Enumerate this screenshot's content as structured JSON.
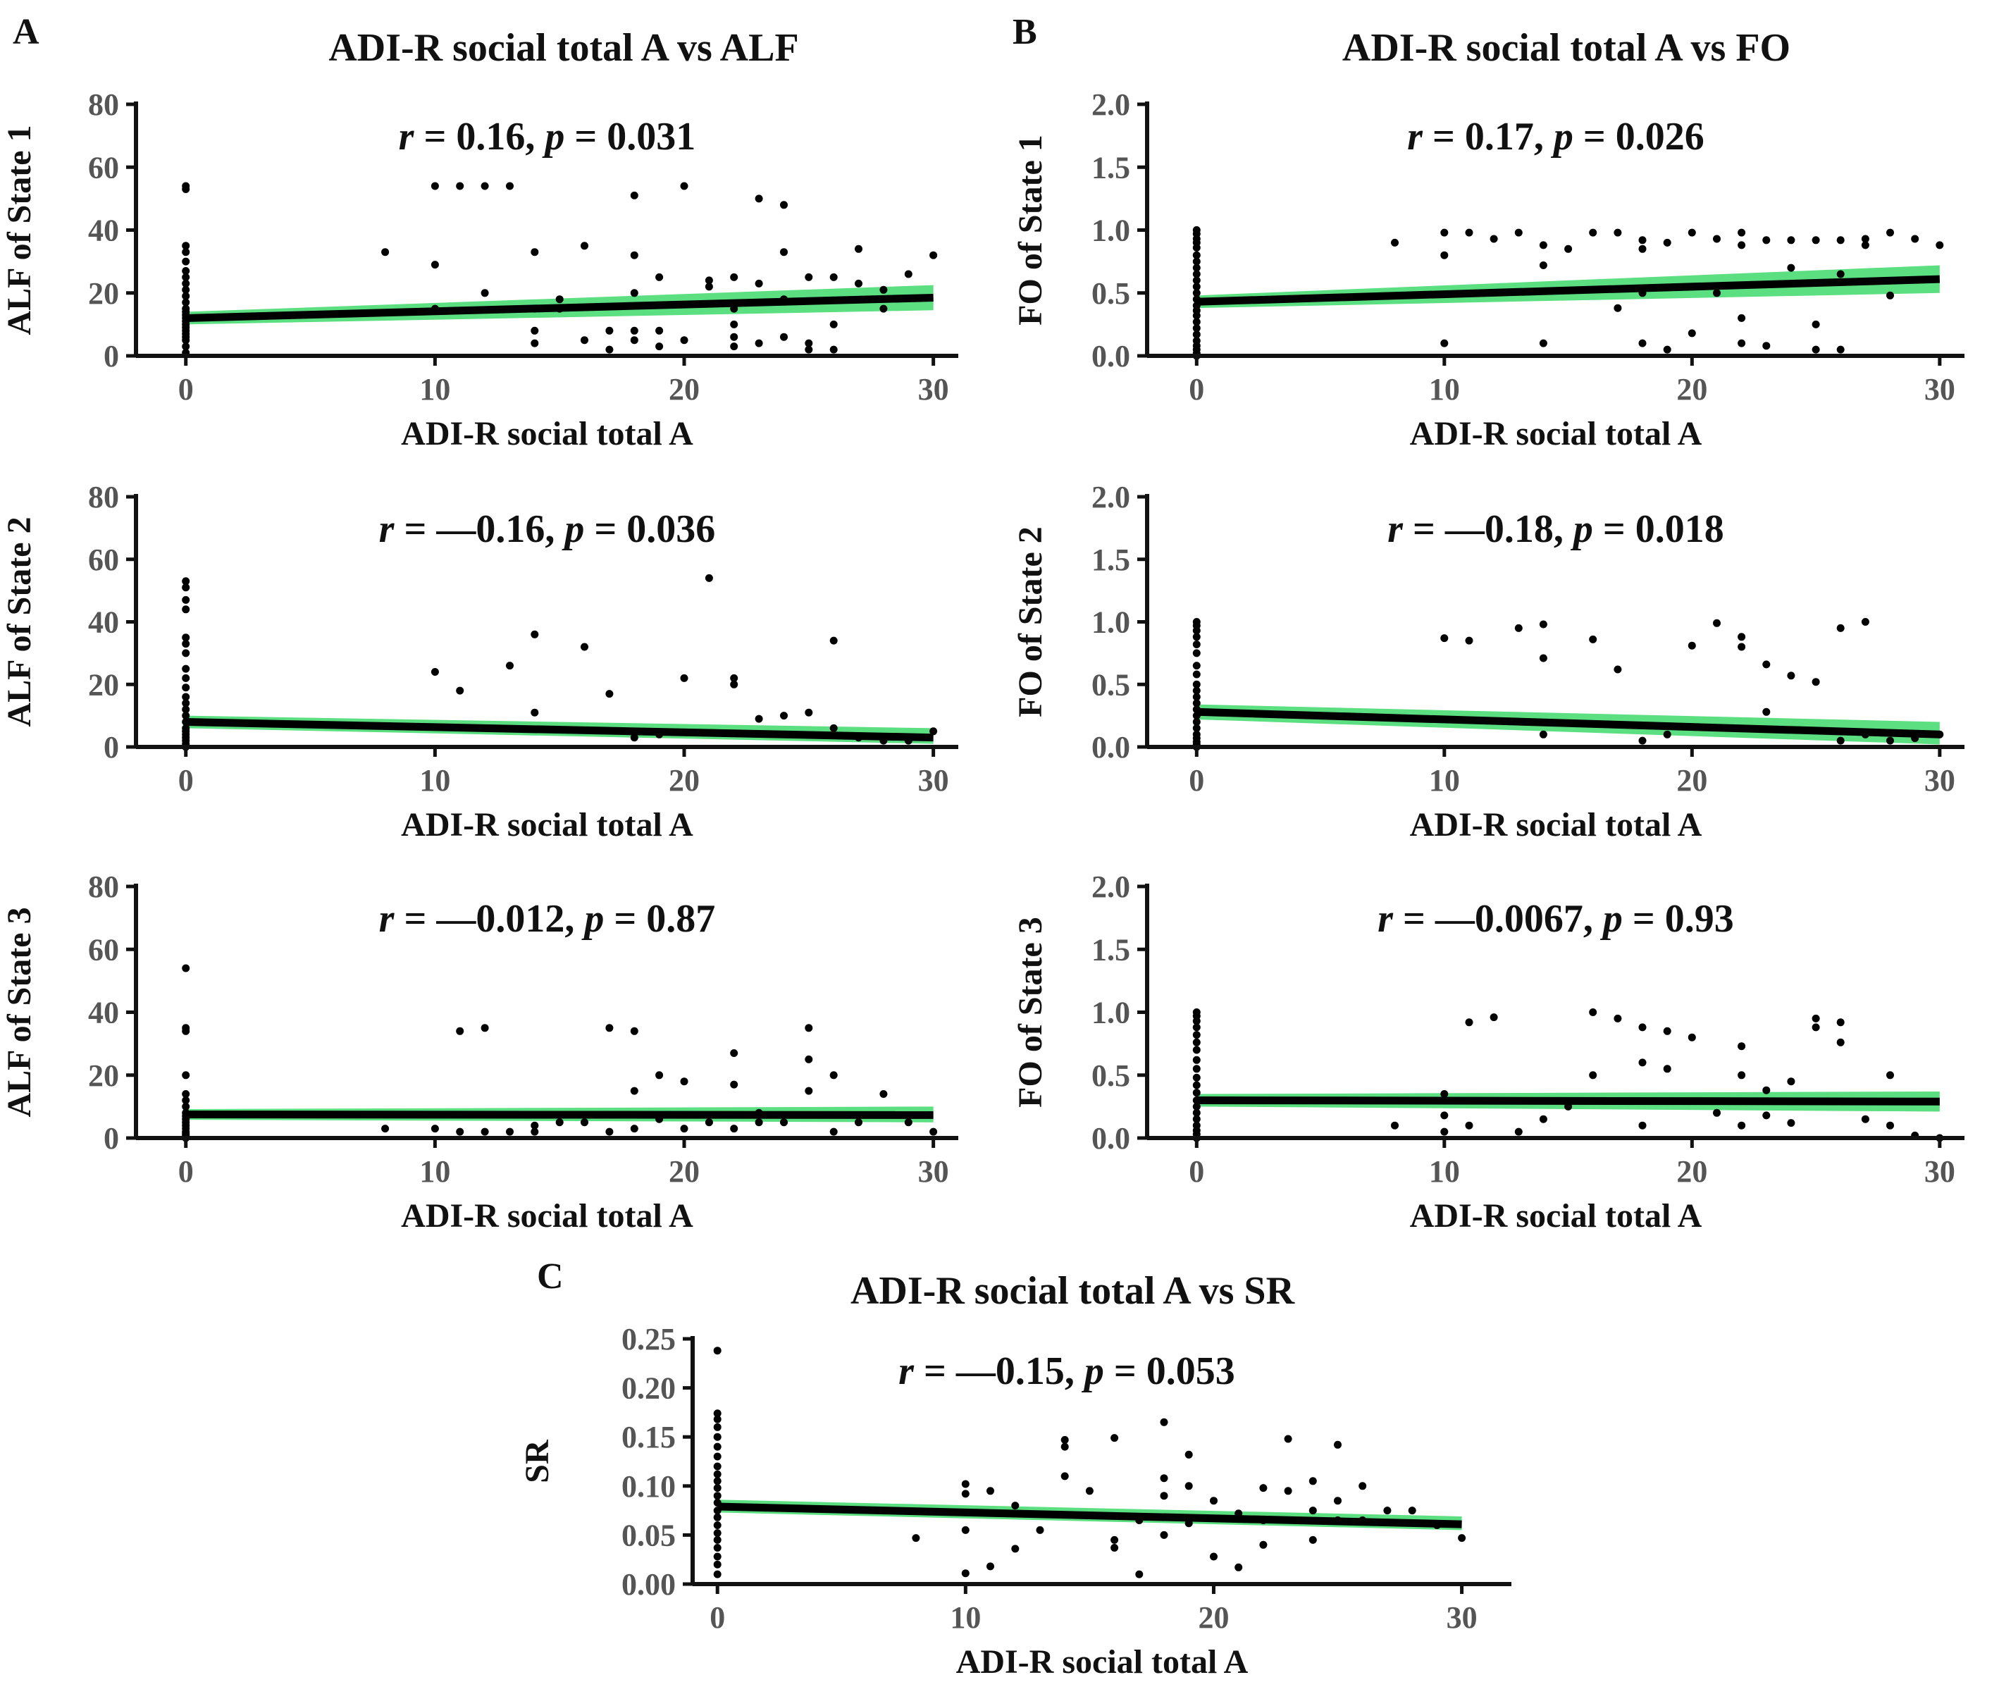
{
  "figure": {
    "sections": [
      {
        "label": "A",
        "title": "ADI-R social total A vs ALF"
      },
      {
        "label": "B",
        "title": "ADI-R social total A vs FO"
      },
      {
        "label": "C",
        "title": "ADI-R social total A vs SR"
      }
    ]
  },
  "chart_data": [
    {
      "id": "A1",
      "type": "scatter",
      "xlabel": "ADI-R social total A",
      "ylabel": "ALF of State 1",
      "annotation": {
        "r": "0.16",
        "p": "0.031"
      },
      "xlim": [
        -2,
        31
      ],
      "ylim": [
        0,
        80
      ],
      "xticks": [
        0,
        10,
        20,
        30
      ],
      "xtick_labels": [
        "0",
        "10",
        "20",
        "30"
      ],
      "yticks": [
        0,
        20,
        40,
        60,
        80
      ],
      "ytick_labels": [
        "0",
        "20",
        "40",
        "60",
        "80"
      ],
      "fit": {
        "x": [
          0,
          30
        ],
        "y": [
          12,
          18.5
        ],
        "band_lo": [
          10,
          14.5
        ],
        "band_hi": [
          14,
          22.5
        ]
      },
      "x": [
        0,
        0,
        0,
        0,
        0,
        0,
        0,
        0,
        0,
        0,
        0,
        0,
        0,
        0,
        0,
        0,
        0,
        0,
        0,
        0,
        0,
        0,
        0,
        0,
        8,
        10,
        10,
        10,
        11,
        12,
        12,
        13,
        14,
        14,
        14,
        14,
        15,
        15,
        16,
        16,
        17,
        17,
        18,
        18,
        18,
        18,
        18,
        19,
        19,
        19,
        20,
        20,
        21,
        21,
        22,
        22,
        22,
        22,
        22,
        23,
        23,
        23,
        24,
        24,
        24,
        24,
        25,
        25,
        25,
        26,
        26,
        26,
        27,
        27,
        28,
        28,
        29,
        30
      ],
      "y": [
        54,
        53,
        35,
        33,
        30,
        27,
        25,
        23,
        21,
        19,
        17,
        15,
        14,
        13,
        12,
        11,
        10,
        9,
        8,
        7,
        6,
        5,
        3,
        1,
        33,
        54,
        29,
        15,
        54,
        54,
        20,
        54,
        33,
        15,
        8,
        4,
        18,
        15,
        35,
        5,
        8,
        2,
        51,
        32,
        20,
        8,
        5,
        25,
        3,
        8,
        54,
        5,
        22,
        24,
        25,
        15,
        10,
        6,
        3,
        50,
        23,
        4,
        48,
        33,
        18,
        6,
        25,
        4,
        2,
        25,
        10,
        2,
        34,
        23,
        21,
        15,
        26,
        32
      ]
    },
    {
      "id": "B1",
      "type": "scatter",
      "xlabel": "ADI-R social total A",
      "ylabel": "FO of State 1",
      "annotation": {
        "r": "0.17",
        "p": "0.026"
      },
      "xlim": [
        -2,
        31
      ],
      "ylim": [
        0,
        2.0
      ],
      "xticks": [
        0,
        10,
        20,
        30
      ],
      "xtick_labels": [
        "0",
        "10",
        "20",
        "30"
      ],
      "yticks": [
        0,
        0.5,
        1.0,
        1.5,
        2.0
      ],
      "ytick_labels": [
        "0.0",
        "0.5",
        "1.0",
        "1.5",
        "2.0"
      ],
      "fit": {
        "x": [
          0,
          30
        ],
        "y": [
          0.43,
          0.61
        ],
        "band_lo": [
          0.38,
          0.5
        ],
        "band_hi": [
          0.48,
          0.72
        ]
      },
      "x": [
        0,
        0,
        0,
        0,
        0,
        0,
        0,
        0,
        0,
        0,
        0,
        0,
        0,
        0,
        0,
        0,
        0,
        0,
        0,
        0,
        0,
        0,
        0,
        0,
        8,
        10,
        10,
        10,
        11,
        12,
        13,
        14,
        14,
        14,
        15,
        16,
        17,
        17,
        18,
        18,
        18,
        18,
        19,
        19,
        20,
        20,
        21,
        21,
        22,
        22,
        22,
        22,
        23,
        23,
        24,
        24,
        25,
        25,
        25,
        26,
        26,
        26,
        27,
        27,
        28,
        28,
        29,
        30
      ],
      "y": [
        1.0,
        0.97,
        0.93,
        0.9,
        0.86,
        0.8,
        0.75,
        0.7,
        0.65,
        0.6,
        0.55,
        0.5,
        0.45,
        0.4,
        0.36,
        0.32,
        0.27,
        0.22,
        0.17,
        0.12,
        0.08,
        0.05,
        0.02,
        0.0,
        0.9,
        0.98,
        0.8,
        0.1,
        0.98,
        0.93,
        0.98,
        0.88,
        0.72,
        0.1,
        0.85,
        0.98,
        0.98,
        0.38,
        0.92,
        0.85,
        0.5,
        0.1,
        0.9,
        0.05,
        0.98,
        0.18,
        0.93,
        0.5,
        0.98,
        0.88,
        0.3,
        0.1,
        0.92,
        0.08,
        0.92,
        0.7,
        0.92,
        0.25,
        0.05,
        0.92,
        0.65,
        0.05,
        0.93,
        0.88,
        0.98,
        0.48,
        0.93,
        0.88
      ]
    },
    {
      "id": "A2",
      "type": "scatter",
      "xlabel": "ADI-R social total A",
      "ylabel": "ALF of State 2",
      "annotation": {
        "r": "—0.16",
        "p": "0.036"
      },
      "xlim": [
        -2,
        31
      ],
      "ylim": [
        0,
        80
      ],
      "xticks": [
        0,
        10,
        20,
        30
      ],
      "xtick_labels": [
        "0",
        "10",
        "20",
        "30"
      ],
      "yticks": [
        0,
        20,
        40,
        60,
        80
      ],
      "ytick_labels": [
        "0",
        "20",
        "40",
        "60",
        "80"
      ],
      "fit": {
        "x": [
          0,
          30
        ],
        "y": [
          8,
          3
        ],
        "band_lo": [
          6,
          1
        ],
        "band_hi": [
          10,
          6
        ]
      },
      "x": [
        0,
        0,
        0,
        0,
        0,
        0,
        0,
        0,
        0,
        0,
        0,
        0,
        0,
        0,
        0,
        0,
        0,
        0,
        0,
        0,
        0,
        0,
        10,
        11,
        13,
        14,
        14,
        16,
        17,
        18,
        19,
        20,
        21,
        22,
        22,
        23,
        24,
        25,
        26,
        26,
        27,
        28,
        29,
        30
      ],
      "y": [
        53,
        51,
        47,
        44,
        35,
        33,
        30,
        25,
        22,
        19,
        16,
        14,
        12,
        10,
        8,
        6,
        5,
        4,
        3,
        2,
        1,
        0,
        24,
        18,
        26,
        36,
        11,
        32,
        17,
        3,
        4,
        22,
        54,
        22,
        20,
        9,
        10,
        11,
        34,
        6,
        3,
        2,
        2,
        5
      ]
    },
    {
      "id": "B2",
      "type": "scatter",
      "xlabel": "ADI-R social total A",
      "ylabel": "FO of State 2",
      "annotation": {
        "r": "—0.18",
        "p": "0.018"
      },
      "xlim": [
        -2,
        31
      ],
      "ylim": [
        0,
        2.0
      ],
      "xticks": [
        0,
        10,
        20,
        30
      ],
      "xtick_labels": [
        "0",
        "10",
        "20",
        "30"
      ],
      "yticks": [
        0,
        0.5,
        1.0,
        1.5,
        2.0
      ],
      "ytick_labels": [
        "0.0",
        "0.5",
        "1.0",
        "1.5",
        "2.0"
      ],
      "fit": {
        "x": [
          0,
          30
        ],
        "y": [
          0.28,
          0.1
        ],
        "band_lo": [
          0.22,
          0.02
        ],
        "band_hi": [
          0.34,
          0.2
        ]
      },
      "x": [
        0,
        0,
        0,
        0,
        0,
        0,
        0,
        0,
        0,
        0,
        0,
        0,
        0,
        0,
        0,
        0,
        0,
        0,
        0,
        0,
        0,
        10,
        11,
        13,
        14,
        14,
        14,
        16,
        17,
        18,
        19,
        20,
        21,
        22,
        22,
        23,
        23,
        24,
        25,
        26,
        26,
        27,
        27,
        28,
        29,
        30
      ],
      "y": [
        1.0,
        0.97,
        0.93,
        0.88,
        0.82,
        0.75,
        0.65,
        0.58,
        0.5,
        0.45,
        0.4,
        0.35,
        0.3,
        0.25,
        0.2,
        0.15,
        0.1,
        0.07,
        0.04,
        0.02,
        0.0,
        0.87,
        0.85,
        0.95,
        0.98,
        0.71,
        0.1,
        0.86,
        0.62,
        0.05,
        0.1,
        0.81,
        0.99,
        0.88,
        0.8,
        0.66,
        0.28,
        0.57,
        0.52,
        0.95,
        0.05,
        1.0,
        0.1,
        0.05,
        0.07,
        0.1
      ]
    },
    {
      "id": "A3",
      "type": "scatter",
      "xlabel": "ADI-R social total A",
      "ylabel": "ALF of State 3",
      "annotation": {
        "r": "—0.012",
        "p": "0.87"
      },
      "xlim": [
        -2,
        31
      ],
      "ylim": [
        0,
        80
      ],
      "xticks": [
        0,
        10,
        20,
        30
      ],
      "xtick_labels": [
        "0",
        "10",
        "20",
        "30"
      ],
      "yticks": [
        0,
        20,
        40,
        60,
        80
      ],
      "ytick_labels": [
        "0",
        "20",
        "40",
        "60",
        "80"
      ],
      "fit": {
        "x": [
          0,
          30
        ],
        "y": [
          7.5,
          7.3
        ],
        "band_lo": [
          5.8,
          5
        ],
        "band_hi": [
          9.2,
          10
        ]
      },
      "x": [
        0,
        0,
        0,
        0,
        0,
        0,
        0,
        0,
        0,
        0,
        0,
        0,
        0,
        0,
        0,
        0,
        0,
        0,
        8,
        10,
        11,
        11,
        12,
        12,
        13,
        14,
        14,
        15,
        16,
        17,
        17,
        18,
        18,
        18,
        19,
        19,
        20,
        20,
        21,
        22,
        22,
        22,
        23,
        23,
        24,
        25,
        25,
        25,
        26,
        26,
        27,
        28,
        29,
        30
      ],
      "y": [
        54,
        35,
        34,
        20,
        14,
        12,
        10,
        8,
        7,
        6,
        5,
        4,
        3,
        2,
        1.5,
        1,
        0.5,
        0,
        3,
        3,
        34,
        2,
        35,
        2,
        2,
        4,
        2,
        5,
        5,
        35,
        2,
        34,
        15,
        3,
        20,
        6,
        18,
        3,
        5,
        27,
        17,
        3,
        8,
        5,
        5,
        35,
        25,
        15,
        20,
        2,
        5,
        14,
        5,
        2
      ]
    },
    {
      "id": "B3",
      "type": "scatter",
      "xlabel": "ADI-R social total A",
      "ylabel": "FO of State 3",
      "annotation": {
        "r": "—0.0067",
        "p": "0.93"
      },
      "xlim": [
        -2,
        31
      ],
      "ylim": [
        0,
        2.0
      ],
      "xticks": [
        0,
        10,
        20,
        30
      ],
      "xtick_labels": [
        "0",
        "10",
        "20",
        "30"
      ],
      "yticks": [
        0,
        0.5,
        1.0,
        1.5,
        2.0
      ],
      "ytick_labels": [
        "0.0",
        "0.5",
        "1.0",
        "1.5",
        "2.0"
      ],
      "fit": {
        "x": [
          0,
          30
        ],
        "y": [
          0.3,
          0.29
        ],
        "band_lo": [
          0.25,
          0.21
        ],
        "band_hi": [
          0.35,
          0.37
        ]
      },
      "x": [
        0,
        0,
        0,
        0,
        0,
        0,
        0,
        0,
        0,
        0,
        0,
        0,
        0,
        0,
        0,
        0,
        0,
        0,
        0,
        0,
        8,
        10,
        10,
        10,
        11,
        11,
        12,
        13,
        14,
        15,
        16,
        16,
        17,
        18,
        18,
        18,
        19,
        19,
        20,
        21,
        22,
        22,
        22,
        23,
        23,
        24,
        24,
        25,
        25,
        26,
        26,
        27,
        28,
        28,
        29,
        30
      ],
      "y": [
        1.0,
        0.97,
        0.93,
        0.88,
        0.82,
        0.76,
        0.7,
        0.62,
        0.55,
        0.48,
        0.42,
        0.36,
        0.3,
        0.25,
        0.2,
        0.15,
        0.1,
        0.06,
        0.03,
        0.0,
        0.1,
        0.35,
        0.18,
        0.05,
        0.92,
        0.1,
        0.96,
        0.05,
        0.15,
        0.25,
        1.0,
        0.5,
        0.95,
        0.88,
        0.6,
        0.1,
        0.85,
        0.55,
        0.8,
        0.2,
        0.73,
        0.5,
        0.1,
        0.38,
        0.18,
        0.45,
        0.12,
        0.95,
        0.88,
        0.92,
        0.76,
        0.15,
        0.5,
        0.1,
        0.02,
        0.0
      ]
    },
    {
      "id": "C",
      "type": "scatter",
      "xlabel": "ADI-R social total A",
      "ylabel": "SR",
      "annotation": {
        "r": "—0.15",
        "p": "0.053"
      },
      "xlim": [
        -1,
        32
      ],
      "ylim": [
        0,
        0.25
      ],
      "xticks": [
        0,
        10,
        20,
        30
      ],
      "xtick_labels": [
        "0",
        "10",
        "20",
        "30"
      ],
      "yticks": [
        0,
        0.05,
        0.1,
        0.15,
        0.2,
        0.25
      ],
      "ytick_labels": [
        "0.00",
        "0.05",
        "0.10",
        "0.15",
        "0.20",
        "0.25"
      ],
      "fit": {
        "x": [
          0,
          30
        ],
        "y": [
          0.079,
          0.061
        ],
        "band_lo": [
          0.073,
          0.055
        ],
        "band_hi": [
          0.086,
          0.069
        ]
      },
      "x": [
        0,
        0,
        0,
        0,
        0,
        0,
        0,
        0,
        0,
        0,
        0,
        0,
        0,
        0,
        0,
        0,
        0,
        0,
        0,
        0,
        0,
        0,
        8,
        10,
        10,
        10,
        10,
        11,
        11,
        12,
        12,
        13,
        14,
        14,
        14,
        15,
        16,
        16,
        16,
        17,
        17,
        18,
        18,
        18,
        18,
        19,
        19,
        19,
        20,
        20,
        21,
        21,
        22,
        22,
        22,
        23,
        23,
        24,
        24,
        24,
        25,
        25,
        25,
        26,
        26,
        27,
        28,
        29,
        30
      ],
      "y": [
        0.238,
        0.174,
        0.168,
        0.16,
        0.15,
        0.14,
        0.13,
        0.12,
        0.112,
        0.105,
        0.098,
        0.09,
        0.083,
        0.075,
        0.068,
        0.06,
        0.052,
        0.045,
        0.037,
        0.028,
        0.02,
        0.01,
        0.047,
        0.102,
        0.092,
        0.055,
        0.011,
        0.095,
        0.018,
        0.08,
        0.036,
        0.055,
        0.147,
        0.14,
        0.11,
        0.095,
        0.149,
        0.045,
        0.037,
        0.065,
        0.01,
        0.165,
        0.108,
        0.09,
        0.05,
        0.132,
        0.1,
        0.062,
        0.085,
        0.028,
        0.072,
        0.017,
        0.098,
        0.065,
        0.04,
        0.148,
        0.095,
        0.105,
        0.075,
        0.045,
        0.142,
        0.085,
        0.065,
        0.1,
        0.065,
        0.075,
        0.075,
        0.06,
        0.047
      ]
    }
  ]
}
